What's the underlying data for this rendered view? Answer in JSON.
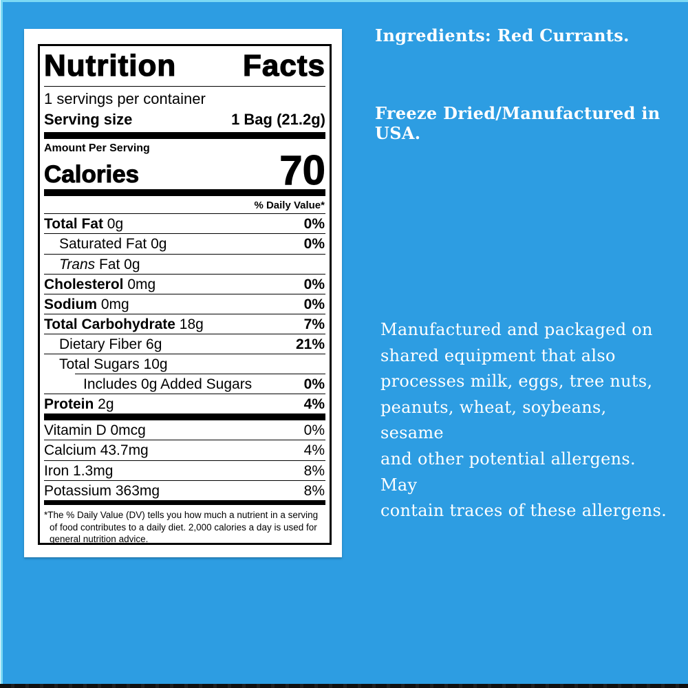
{
  "page": {
    "background_color": "#2D9DE2",
    "edge_highlight_color": "#7CD9F4",
    "bottom_bar_color": "#101010",
    "label_card_color": "#FFFFFF",
    "text_color_right_panel": "#FFFFFF"
  },
  "right_panel": {
    "ingredients": "Ingredients: Red Currants.",
    "origin": "Freeze Dried/Manufactured in USA.",
    "allergen_lines": [
      "Manufactured and packaged on",
      "shared equipment that also",
      "processes milk, eggs, tree nuts,",
      "peanuts, wheat, soybeans, sesame",
      "and other potential allergens. May",
      "contain traces of these allergens."
    ]
  },
  "nutrition_label": {
    "title_word1": "Nutrition",
    "title_word2": "Facts",
    "servings_per_container": "1 servings per container",
    "serving_size_label": "Serving size",
    "serving_size_value": "1 Bag (21.2g)",
    "amount_per_serving": "Amount Per Serving",
    "calories_label": "Calories",
    "calories_value": "70",
    "daily_value_header": "% Daily Value*",
    "nutrients": [
      {
        "label": "Total Fat",
        "amount": "0g",
        "dv": "0%",
        "bold": true,
        "indent": 0
      },
      {
        "label": "Saturated Fat",
        "amount": "0g",
        "dv": "0%",
        "bold": false,
        "indent": 1
      },
      {
        "label_italic": "Trans",
        "label": "Fat",
        "amount": "0g",
        "dv": "",
        "bold": false,
        "indent": 1
      },
      {
        "label": "Cholesterol",
        "amount": "0mg",
        "dv": "0%",
        "bold": true,
        "indent": 0
      },
      {
        "label": "Sodium",
        "amount": "0mg",
        "dv": "0%",
        "bold": true,
        "indent": 0
      },
      {
        "label": "Total Carbohydrate",
        "amount": "18g",
        "dv": "7%",
        "bold": true,
        "indent": 0
      },
      {
        "label": "Dietary Fiber",
        "amount": "6g",
        "dv": "21%",
        "bold": false,
        "indent": 1
      },
      {
        "label": "Total Sugars",
        "amount": "10g",
        "dv": "",
        "bold": false,
        "indent": 1
      },
      {
        "label": "Includes 0g Added Sugars",
        "amount": "",
        "dv": "0%",
        "bold": false,
        "indent": 0,
        "indented_rule": true
      },
      {
        "label": "Protein",
        "amount": "2g",
        "dv": "4%",
        "bold": true,
        "indent": 0
      }
    ],
    "micronutrients": [
      {
        "label": "Vitamin D",
        "amount": "0mcg",
        "dv": "0%"
      },
      {
        "label": "Calcium",
        "amount": "43.7mg",
        "dv": "4%"
      },
      {
        "label": "Iron",
        "amount": "1.3mg",
        "dv": "8%"
      },
      {
        "label": "Potassium",
        "amount": "363mg",
        "dv": "8%"
      }
    ],
    "footnote": "*The % Daily Value (DV) tells you how much a nutrient in a serving of food contributes to a daily diet. 2,000 calories a day is used for general nutrition advice."
  }
}
